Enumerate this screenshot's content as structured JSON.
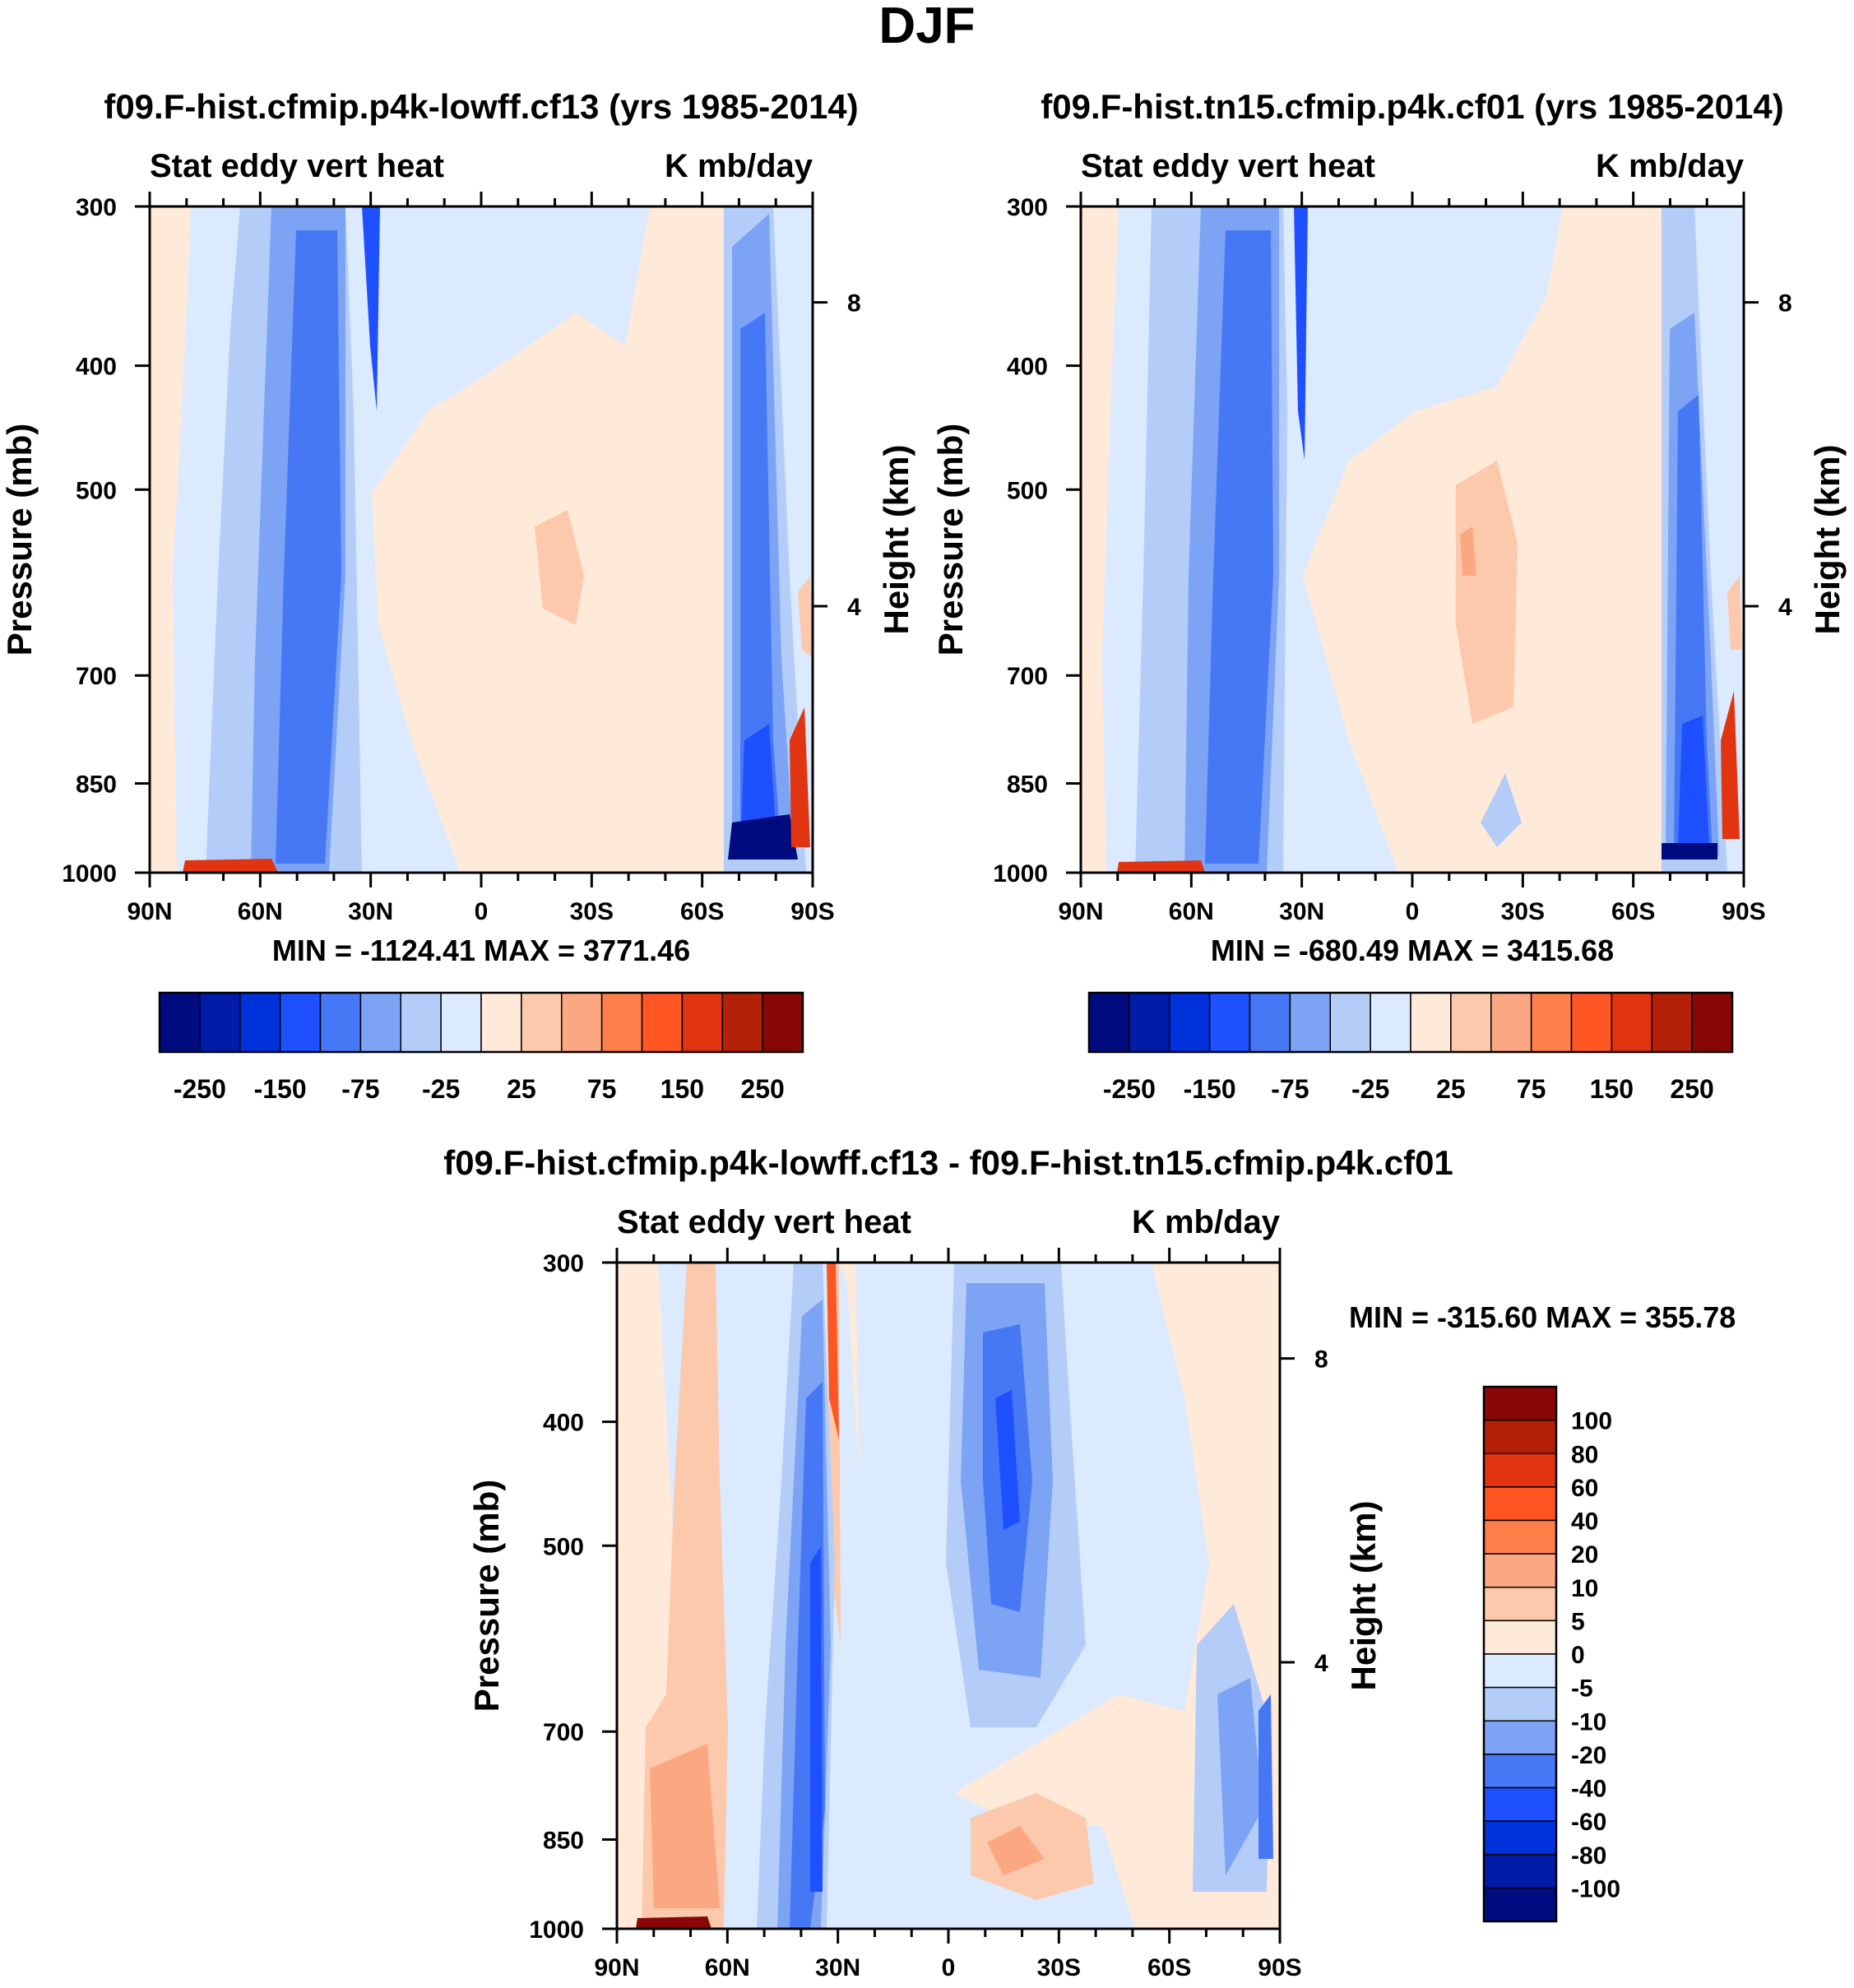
{
  "figure": {
    "season_title": "DJF",
    "cbar_ab_ticks": [
      "-250",
      "-150",
      "-75",
      "-25",
      "25",
      "75",
      "150",
      "250"
    ],
    "cbar_diff_ticks": [
      "100",
      "80",
      "60",
      "40",
      "20",
      "10",
      "5",
      "0",
      "-5",
      "-10",
      "-20",
      "-40",
      "-60",
      "-80",
      "-100"
    ],
    "colors": {
      "blues": [
        "#000b80",
        "#001ca8",
        "#0032dc",
        "#1e50ff",
        "#4678f5",
        "#7da3f5",
        "#b4cdf8",
        "#dceaff"
      ],
      "reds": [
        "#ffe9d8",
        "#fcc9ad",
        "#fba882",
        "#ff7f4a",
        "#ff5522",
        "#e03510",
        "#b52008",
        "#890707"
      ]
    }
  },
  "chart_data": [
    {
      "type": "heatmap",
      "title": "f09.F-hist.cfmip.p4k-lowff.cf13 (yrs 1985-2014)",
      "left_label": "Stat eddy vert heat",
      "right_label": "K mb/day",
      "xlabel": "",
      "ylabel": "Pressure (mb)",
      "ylabel_right": "Height (km)",
      "x_ticks": [
        "90N",
        "60N",
        "30N",
        "0",
        "30S",
        "60S",
        "90S"
      ],
      "y_ticks": [
        "300",
        "400",
        "500",
        "700",
        "850",
        "1000"
      ],
      "y_right_ticks": [
        "8",
        "4"
      ],
      "ylim": [
        1000,
        300
      ],
      "stats": "MIN = -1124.41   MAX = 3771.46",
      "min": -1124.41,
      "max": 3771.46,
      "contour_levels": [
        -250,
        -200,
        -150,
        -100,
        -75,
        -50,
        -25,
        0,
        25,
        50,
        75,
        100,
        150,
        200,
        250
      ]
    },
    {
      "type": "heatmap",
      "title": "f09.F-hist.tn15.cfmip.p4k.cf01 (yrs 1985-2014)",
      "left_label": "Stat eddy vert heat",
      "right_label": "K mb/day",
      "xlabel": "",
      "ylabel": "Pressure (mb)",
      "ylabel_right": "Height (km)",
      "x_ticks": [
        "90N",
        "60N",
        "30N",
        "0",
        "30S",
        "60S",
        "90S"
      ],
      "y_ticks": [
        "300",
        "400",
        "500",
        "700",
        "850",
        "1000"
      ],
      "y_right_ticks": [
        "8",
        "4"
      ],
      "ylim": [
        1000,
        300
      ],
      "stats": "MIN = -680.49   MAX = 3415.68",
      "min": -680.49,
      "max": 3415.68,
      "contour_levels": [
        -250,
        -200,
        -150,
        -100,
        -75,
        -50,
        -25,
        0,
        25,
        50,
        75,
        100,
        150,
        200,
        250
      ]
    },
    {
      "type": "heatmap",
      "title": "f09.F-hist.cfmip.p4k-lowff.cf13 - f09.F-hist.tn15.cfmip.p4k.cf01",
      "left_label": "Stat eddy vert heat",
      "right_label": "K mb/day",
      "xlabel": "",
      "ylabel": "Pressure (mb)",
      "ylabel_right": "Height (km)",
      "x_ticks": [
        "90N",
        "60N",
        "30N",
        "0",
        "30S",
        "60S",
        "90S"
      ],
      "y_ticks": [
        "300",
        "400",
        "500",
        "700",
        "850",
        "1000"
      ],
      "y_right_ticks": [
        "8",
        "4"
      ],
      "ylim": [
        1000,
        300
      ],
      "stats": "MIN = -315.60   MAX = 355.78",
      "min": -315.6,
      "max": 355.78,
      "contour_levels": [
        -100,
        -80,
        -60,
        -40,
        -20,
        -10,
        -5,
        0,
        5,
        10,
        20,
        40,
        60,
        80,
        100
      ]
    }
  ]
}
